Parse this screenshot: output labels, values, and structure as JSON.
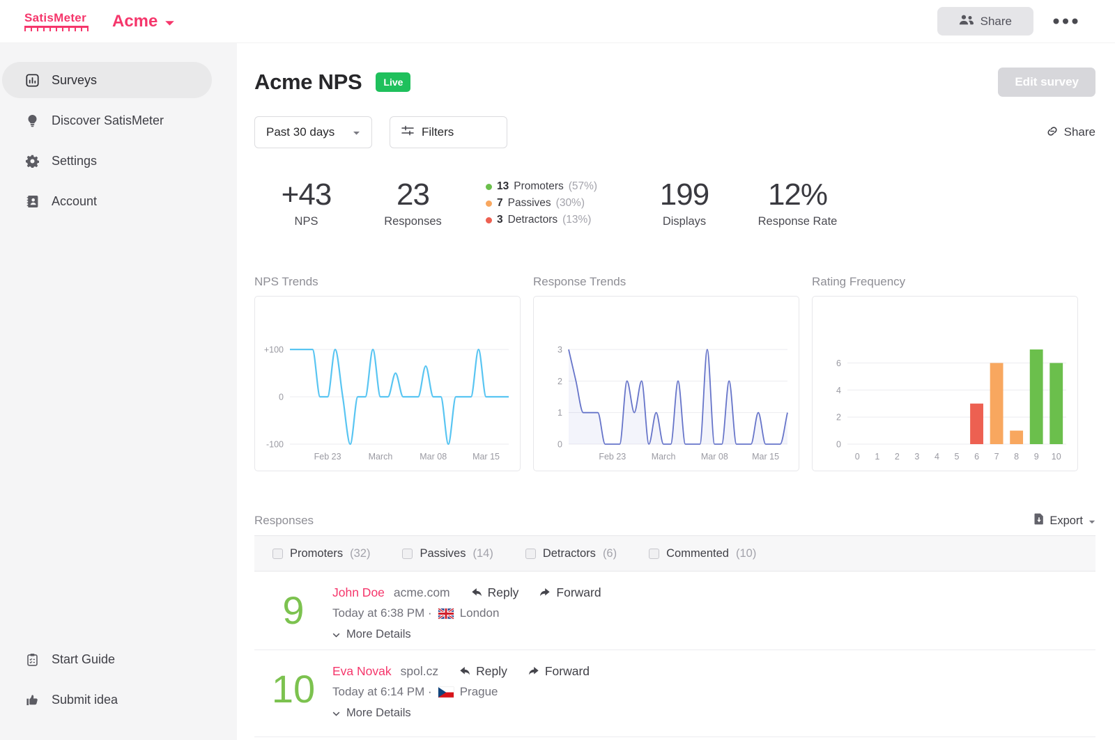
{
  "topbar": {
    "brand": "SatisMeter",
    "workspace": "Acme",
    "share_label": "Share"
  },
  "sidebar": {
    "items": [
      {
        "label": "Surveys",
        "icon": "bar-chart-icon",
        "active": true
      },
      {
        "label": "Discover SatisMeter",
        "icon": "lightbulb-icon",
        "active": false
      },
      {
        "label": "Settings",
        "icon": "gear-icon",
        "active": false
      },
      {
        "label": "Account",
        "icon": "contact-card-icon",
        "active": false
      }
    ],
    "footer_items": [
      {
        "label": "Start Guide",
        "icon": "clipboard-icon"
      },
      {
        "label": "Submit idea",
        "icon": "thumbs-up-icon"
      }
    ]
  },
  "header": {
    "title": "Acme NPS",
    "status_badge": "Live",
    "edit_button": "Edit survey",
    "date_range": "Past 30 days",
    "filters_label": "Filters",
    "share_link": "Share"
  },
  "stats": {
    "nps": {
      "value": "+43",
      "label": "NPS"
    },
    "responses": {
      "value": "23",
      "label": "Responses"
    },
    "breakdown": [
      {
        "count": "13",
        "label": "Promoters",
        "pct": "(57%)",
        "color": "#6bbf4c"
      },
      {
        "count": "7",
        "label": "Passives",
        "pct": "(30%)",
        "color": "#f8a75f"
      },
      {
        "count": "3",
        "label": "Detractors",
        "pct": "(13%)",
        "color": "#ed6051"
      }
    ],
    "displays": {
      "value": "199",
      "label": "Displays"
    },
    "response_rate": {
      "value": "12%",
      "label": "Response Rate"
    }
  },
  "chart_data": [
    {
      "type": "line",
      "title": "NPS Trends",
      "ylim": [
        -100,
        100
      ],
      "yticks": [
        {
          "value": 100,
          "label": "+100"
        },
        {
          "value": 0,
          "label": "0"
        },
        {
          "value": -100,
          "label": "-100"
        }
      ],
      "values": [
        100,
        100,
        100,
        100,
        0,
        0,
        100,
        0,
        -100,
        0,
        0,
        100,
        0,
        0,
        50,
        0,
        0,
        0,
        65,
        0,
        0,
        -100,
        0,
        0,
        0,
        100,
        0,
        0,
        0,
        0
      ],
      "x_ticks": [
        {
          "label": "Feb 23",
          "pos": 5
        },
        {
          "label": "March",
          "pos": 12
        },
        {
          "label": "Mar 08",
          "pos": 19
        },
        {
          "label": "Mar 15",
          "pos": 26
        }
      ],
      "line_color": "#59c5f2",
      "line_width": 2.2,
      "grid": true,
      "legend": false
    },
    {
      "type": "area",
      "title": "Response Trends",
      "ylim": [
        0,
        3
      ],
      "yticks": [
        {
          "value": 3,
          "label": "3"
        },
        {
          "value": 2,
          "label": "2"
        },
        {
          "value": 1,
          "label": "1"
        },
        {
          "value": 0,
          "label": "0"
        }
      ],
      "values": [
        3,
        2,
        1,
        1,
        1,
        0,
        0,
        0,
        2,
        1,
        2,
        0,
        1,
        0,
        0,
        2,
        0,
        0,
        0,
        3,
        0,
        0,
        2,
        0,
        0,
        0,
        1,
        0,
        0,
        0,
        1
      ],
      "x_ticks": [
        {
          "label": "Feb 23",
          "pos": 6
        },
        {
          "label": "March",
          "pos": 13
        },
        {
          "label": "Mar 08",
          "pos": 20
        },
        {
          "label": "Mar 15",
          "pos": 27
        }
      ],
      "line_color": "#6674c9",
      "line_width": 1.8,
      "fill": "rgba(102,116,201,0.08)",
      "grid": true,
      "legend": false
    },
    {
      "type": "bar",
      "title": "Rating Frequency",
      "ylim": [
        0,
        7
      ],
      "yticks": [
        {
          "value": 6,
          "label": "6"
        },
        {
          "value": 4,
          "label": "4"
        },
        {
          "value": 2,
          "label": "2"
        },
        {
          "value": 0,
          "label": "0"
        }
      ],
      "categories": [
        "0",
        "1",
        "2",
        "3",
        "4",
        "5",
        "6",
        "7",
        "8",
        "9",
        "10"
      ],
      "values": [
        0,
        0,
        0,
        0,
        0,
        0,
        3,
        6,
        1,
        7,
        6
      ],
      "bar_colors": [
        "#ed6051",
        "#ed6051",
        "#ed6051",
        "#ed6051",
        "#ed6051",
        "#ed6051",
        "#ed6051",
        "#f8a75f",
        "#f8a75f",
        "#6bbf4c",
        "#6bbf4c"
      ],
      "grid": true,
      "legend": false
    }
  ],
  "responses_section": {
    "title": "Responses",
    "export_label": "Export",
    "filters": [
      {
        "label": "Promoters",
        "count": "(32)"
      },
      {
        "label": "Passives",
        "count": "(14)"
      },
      {
        "label": "Detractors",
        "count": "(6)"
      },
      {
        "label": "Commented",
        "count": "(10)"
      }
    ],
    "rows": [
      {
        "score": "9",
        "name": "John Doe",
        "domain": "acme.com",
        "reply_label": "Reply",
        "forward_label": "Forward",
        "time": "Today at 6:38 PM ·",
        "flag": "uk-flag",
        "location": "London",
        "more_label": "More Details"
      },
      {
        "score": "10",
        "name": "Eva Novak",
        "domain": "spol.cz",
        "reply_label": "Reply",
        "forward_label": "Forward",
        "time": "Today at 6:14 PM ·",
        "flag": "czech-flag",
        "location": "Prague",
        "more_label": "More Details"
      }
    ]
  },
  "colors": {
    "brand_pink": "#f5366b",
    "live_green": "#1fc05c",
    "promoter_green": "#6bbf4c",
    "passive_orange": "#f8a75f",
    "detractor_red": "#ed6051",
    "nps_line_blue": "#59c5f2",
    "response_line_indigo": "#6674c9",
    "score_green": "#7cc24f"
  }
}
